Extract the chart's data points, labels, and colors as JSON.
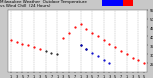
{
  "title_left": "Milwaukee Weather  Outdoor Temperature",
  "title_right": "vs Wind Chill  (24 Hours)",
  "title_fontsize": 3.2,
  "bg_color": "#c8c8c8",
  "plot_bg_color": "#ffffff",
  "grid_color": "#888888",
  "temp_color": "#ff0000",
  "wind_chill_color": "#0000cc",
  "black_color": "#000000",
  "legend_blue": "#0000ff",
  "legend_red": "#ff0000",
  "hours": [
    0,
    1,
    2,
    3,
    4,
    5,
    6,
    7,
    8,
    9,
    10,
    11,
    12,
    13,
    14,
    15,
    16,
    17,
    18,
    19,
    20,
    21,
    22,
    23
  ],
  "temp_x": [
    0,
    1,
    2,
    3,
    4,
    5,
    9,
    10,
    11,
    12,
    13,
    14,
    15,
    16,
    17,
    18,
    19,
    20,
    21,
    22,
    23
  ],
  "temp_y": [
    38,
    37,
    36,
    35,
    34,
    33,
    39,
    42,
    45,
    47,
    44,
    42,
    40,
    38,
    36,
    34,
    32,
    30,
    28,
    27,
    25
  ],
  "wc_x": [
    12,
    13,
    14,
    15,
    16,
    17
  ],
  "wc_y": [
    35,
    33,
    31,
    29,
    27,
    25
  ],
  "black_x": [
    6,
    7,
    8,
    12,
    13
  ],
  "black_y": [
    32,
    31,
    30,
    35,
    33
  ],
  "ylim": [
    20,
    55
  ],
  "yticks": [
    25,
    30,
    35,
    40,
    45,
    50,
    55
  ],
  "xtick_positions": [
    0,
    1,
    2,
    3,
    4,
    5,
    6,
    7,
    8,
    9,
    10,
    11,
    12,
    13,
    14,
    15,
    16,
    17,
    18,
    19,
    20,
    21,
    22,
    23
  ],
  "xtick_labels": [
    "1",
    "3",
    "5",
    "7",
    "1",
    "3",
    "5",
    "7",
    "1",
    "3",
    "5",
    "7",
    "1",
    "3",
    "5",
    "7",
    "1",
    "3",
    "5",
    "7",
    "1",
    "3",
    "5",
    "5"
  ]
}
